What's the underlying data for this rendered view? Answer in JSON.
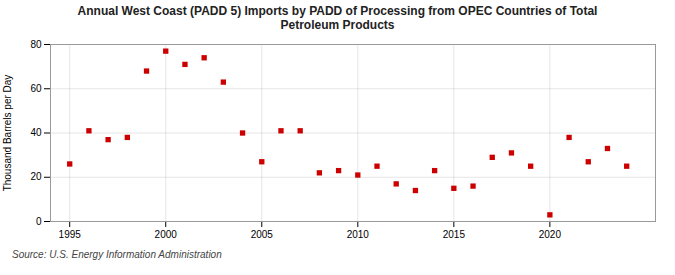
{
  "chart_data": {
    "type": "scatter",
    "title": "Annual West Coast (PADD 5) Imports by PADD of Processing from OPEC Countries of Total\nPetroleum Products",
    "ylabel": "Thousand Barrels per Day",
    "source": "Source: U.S. Energy Information Administration",
    "x": [
      1995,
      1996,
      1997,
      1998,
      1999,
      2000,
      2001,
      2002,
      2003,
      2004,
      2005,
      2006,
      2007,
      2008,
      2009,
      2010,
      2011,
      2012,
      2013,
      2014,
      2015,
      2016,
      2017,
      2018,
      2019,
      2020,
      2021,
      2022,
      2023,
      2024
    ],
    "values": [
      26,
      41,
      37,
      38,
      68,
      77,
      71,
      74,
      63,
      40,
      27,
      41,
      41,
      22,
      23,
      21,
      25,
      17,
      14,
      23,
      15,
      16,
      29,
      31,
      25,
      3,
      38,
      27,
      33,
      25
    ],
    "color": "#cc0000",
    "marker": "square",
    "xlim": [
      1994.0,
      2025.5
    ],
    "ylim": [
      0,
      80
    ],
    "xticks": [
      1995,
      2000,
      2005,
      2010,
      2015,
      2020
    ],
    "yticks": [
      0,
      20,
      40,
      60,
      80
    ],
    "grid": true
  }
}
